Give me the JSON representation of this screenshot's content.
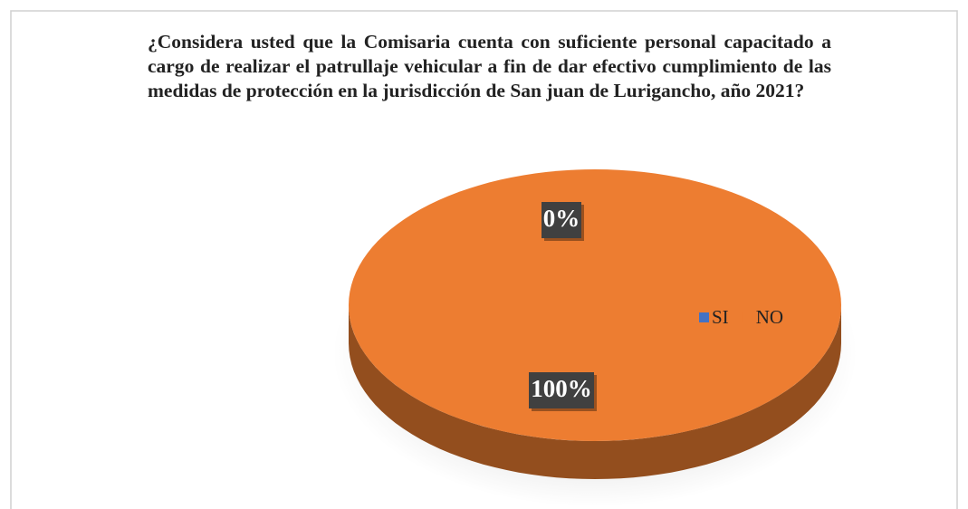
{
  "chart_data": {
    "type": "pie",
    "title": "¿Considera usted que la Comisaria cuenta con suficiente personal capacitado a cargo de realizar el patrullaje vehicular a fin de dar efectivo cumplimiento de las medidas de protección en la jurisdicción de San juan de Lurigancho, año 2021?",
    "categories": [
      "SI",
      "NO"
    ],
    "values": [
      0,
      100
    ],
    "value_labels": [
      "0%",
      "100%"
    ],
    "colors": [
      "#4472c4",
      "#ed7d31"
    ],
    "legend": "right"
  }
}
